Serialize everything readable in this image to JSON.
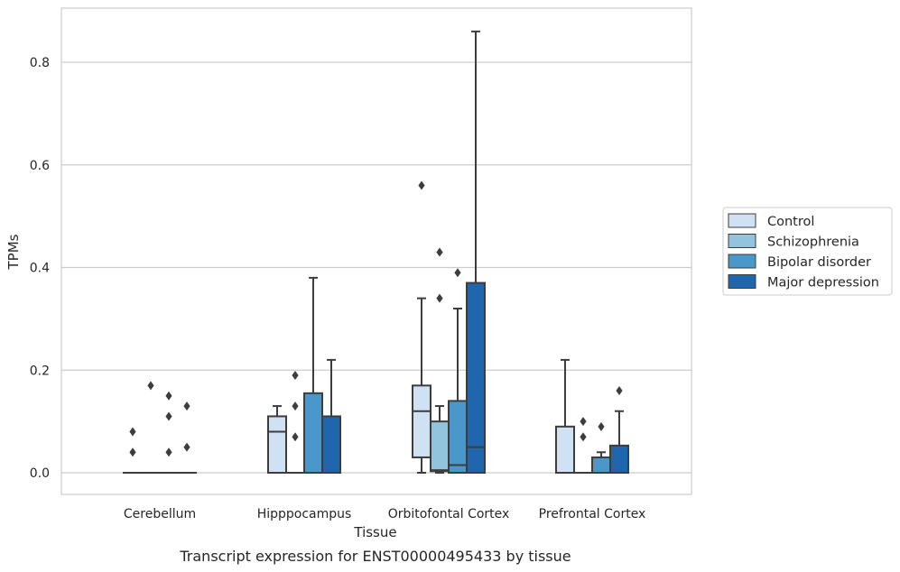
{
  "caption": "Transcript expression for ENST00000495433 by tissue",
  "chart_data": {
    "type": "box",
    "xlabel": "Tissue",
    "ylabel": "TPMs",
    "ylim": [
      -0.04,
      0.91
    ],
    "yticks": [
      0.0,
      0.2,
      0.4,
      0.6,
      0.8
    ],
    "ytick_labels": [
      "0.0",
      "0.2",
      "0.4",
      "0.6",
      "0.8"
    ],
    "grid": "horizontal",
    "legend_position": "right",
    "categories": [
      "Cerebellum",
      "Hipppocampus",
      "Orbitofontal Cortex",
      "Prefrontal Cortex"
    ],
    "series": [
      {
        "name": "Control",
        "color": "#cfe1f2",
        "boxes": [
          {
            "q1": 0,
            "median": 0,
            "q3": 0,
            "whislo": 0,
            "whishi": 0,
            "fliers": [
              0.08,
              0.04
            ]
          },
          {
            "q1": 0,
            "median": 0.08,
            "q3": 0.11,
            "whislo": 0,
            "whishi": 0.13,
            "fliers": []
          },
          {
            "q1": 0.03,
            "median": 0.12,
            "q3": 0.17,
            "whislo": 0,
            "whishi": 0.34,
            "fliers": [
              0.56
            ]
          },
          {
            "q1": 0,
            "median": 0,
            "q3": 0.09,
            "whislo": 0,
            "whishi": 0.22,
            "fliers": []
          }
        ]
      },
      {
        "name": "Schizophrenia",
        "color": "#93c4de",
        "boxes": [
          {
            "q1": 0,
            "median": 0,
            "q3": 0,
            "whislo": 0,
            "whishi": 0,
            "fliers": [
              0.17
            ]
          },
          {
            "q1": 0,
            "median": 0,
            "q3": 0,
            "whislo": 0,
            "whishi": 0,
            "fliers": [
              0.19,
              0.13,
              0.07
            ]
          },
          {
            "q1": 0.003,
            "median": 0.005,
            "q3": 0.1,
            "whislo": 0,
            "whishi": 0.13,
            "fliers": [
              0.43,
              0.34
            ]
          },
          {
            "q1": 0,
            "median": 0,
            "q3": 0,
            "whislo": 0,
            "whishi": 0,
            "fliers": [
              0.1,
              0.07
            ]
          }
        ]
      },
      {
        "name": "Bipolar disorder",
        "color": "#4a98c9",
        "boxes": [
          {
            "q1": 0,
            "median": 0,
            "q3": 0,
            "whislo": 0,
            "whishi": 0,
            "fliers": [
              0.15,
              0.11,
              0.04
            ]
          },
          {
            "q1": 0,
            "median": 0,
            "q3": 0.155,
            "whislo": 0,
            "whishi": 0.38,
            "fliers": []
          },
          {
            "q1": 0,
            "median": 0.015,
            "q3": 0.14,
            "whislo": 0,
            "whishi": 0.32,
            "fliers": [
              0.39
            ]
          },
          {
            "q1": 0,
            "median": 0,
            "q3": 0.03,
            "whislo": 0,
            "whishi": 0.04,
            "fliers": [
              0.09
            ]
          }
        ]
      },
      {
        "name": "Major depression",
        "color": "#2066ac",
        "boxes": [
          {
            "q1": 0,
            "median": 0,
            "q3": 0,
            "whislo": 0,
            "whishi": 0,
            "fliers": [
              0.13,
              0.05
            ]
          },
          {
            "q1": 0,
            "median": 0,
            "q3": 0.11,
            "whislo": 0,
            "whishi": 0.22,
            "fliers": []
          },
          {
            "q1": 0,
            "median": 0.05,
            "q3": 0.37,
            "whislo": 0,
            "whishi": 0.86,
            "fliers": []
          },
          {
            "q1": 0,
            "median": 0,
            "q3": 0.053,
            "whislo": 0,
            "whishi": 0.12,
            "fliers": [
              0.16
            ]
          }
        ]
      }
    ]
  }
}
